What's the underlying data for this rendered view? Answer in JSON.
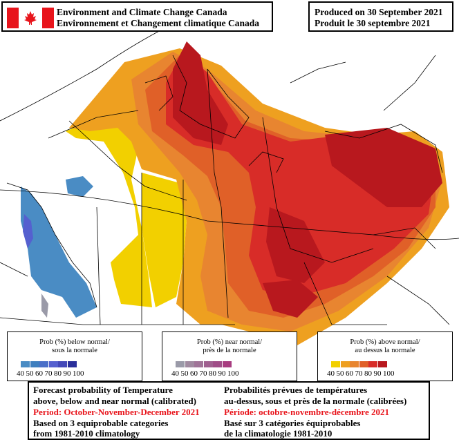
{
  "header": {
    "agency_en": "Environment and Climate Change Canada",
    "agency_fr": "Environnement et Changement climatique Canada",
    "produced_en": "Produced on 30 September 2021",
    "produced_fr": "Produit le 30 septembre 2021",
    "flag_icon": "canada-flag-icon",
    "flag_red": "#e8141b"
  },
  "legends": {
    "below": {
      "title_en": "Prob (%) below normal/",
      "title_fr": "sous la normale",
      "ticks": [
        "40",
        "50",
        "60",
        "70",
        "80",
        "90",
        "100"
      ],
      "colors": [
        "#4a8cc4",
        "#3f7fbf",
        "#4a6fc8",
        "#5560cf",
        "#4348b8",
        "#2a2f9a"
      ]
    },
    "near": {
      "title_en": "Prob (%) near normal/",
      "title_fr": "près de la normale",
      "ticks": [
        "40",
        "50",
        "60",
        "70",
        "80",
        "90",
        "100"
      ],
      "colors": [
        "#9a9aa8",
        "#a08aa0",
        "#a07498",
        "#a06090",
        "#a04d88",
        "#a83c80"
      ]
    },
    "above": {
      "title_en": "Prob (%) above normal/",
      "title_fr": "au dessus la normale",
      "ticks": [
        "40",
        "50",
        "60",
        "70",
        "80",
        "90",
        "100"
      ],
      "colors": [
        "#f2d000",
        "#eea020",
        "#e88530",
        "#e06028",
        "#d82c28",
        "#b8181e"
      ]
    }
  },
  "footer": {
    "en_line1": "Forecast probability of Temperature",
    "en_line2": "above, below and near normal (calibrated)",
    "en_period": "Period: October-November-December 2021",
    "en_line4": "Based on 3 equiprobable categories",
    "en_line5": "from 1981-2010 climatology",
    "fr_line1": "Probabilités prévues de températures",
    "fr_line2": "au-dessus, sous et près de la normale (calibrées)",
    "fr_period": "Période: octobre-novembre-décembre 2021",
    "fr_line4": "Basé sur 3 catégories équiprobables",
    "fr_line5": "de la climatologie 1981-2010",
    "period_color": "#e8141b"
  }
}
